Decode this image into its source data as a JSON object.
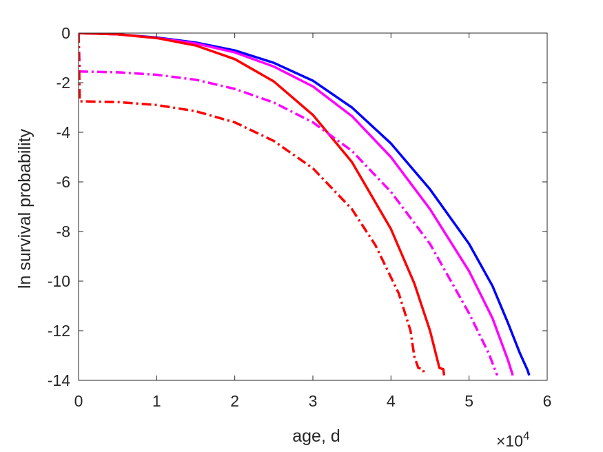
{
  "chart_data": {
    "type": "line",
    "title": "",
    "xlabel": "age, d",
    "ylabel": "ln survival probability",
    "x_multiplier_label": {
      "base": "×10",
      "exponent": "4"
    },
    "xlim": [
      0,
      60000
    ],
    "ylim": [
      -14,
      0
    ],
    "x_ticks": [
      0,
      10000,
      20000,
      30000,
      40000,
      50000,
      60000
    ],
    "x_tick_labels": [
      "0",
      "1",
      "2",
      "3",
      "4",
      "5",
      "6"
    ],
    "y_ticks": [
      0,
      -2,
      -4,
      -6,
      -8,
      -10,
      -12,
      -14
    ],
    "y_tick_labels": [
      "0",
      "-2",
      "-4",
      "-6",
      "-8",
      "-10",
      "-12",
      "-14"
    ],
    "grid": false,
    "series": [
      {
        "color": "#0000ff",
        "style": "solid",
        "points": [
          [
            0,
            0
          ],
          [
            5000,
            -0.05
          ],
          [
            10000,
            -0.18
          ],
          [
            15000,
            -0.38
          ],
          [
            20000,
            -0.7
          ],
          [
            25000,
            -1.2
          ],
          [
            30000,
            -1.92
          ],
          [
            35000,
            -3.0
          ],
          [
            40000,
            -4.45
          ],
          [
            45000,
            -6.3
          ],
          [
            50000,
            -8.5
          ],
          [
            53000,
            -10.2
          ],
          [
            55000,
            -11.7
          ],
          [
            56500,
            -12.9
          ],
          [
            57500,
            -13.6
          ],
          [
            57700,
            -13.8
          ]
        ]
      },
      {
        "color": "#ff00ff",
        "style": "solid",
        "points": [
          [
            0,
            0
          ],
          [
            5000,
            -0.05
          ],
          [
            10000,
            -0.2
          ],
          [
            15000,
            -0.42
          ],
          [
            20000,
            -0.78
          ],
          [
            25000,
            -1.35
          ],
          [
            30000,
            -2.15
          ],
          [
            35000,
            -3.35
          ],
          [
            40000,
            -5.0
          ],
          [
            45000,
            -7.1
          ],
          [
            50000,
            -9.6
          ],
          [
            53000,
            -11.5
          ],
          [
            55000,
            -13.2
          ],
          [
            55600,
            -13.8
          ]
        ]
      },
      {
        "color": "#ff0000",
        "style": "solid",
        "points": [
          [
            0,
            0
          ],
          [
            5000,
            -0.05
          ],
          [
            10000,
            -0.2
          ],
          [
            15000,
            -0.5
          ],
          [
            20000,
            -1.05
          ],
          [
            25000,
            -1.95
          ],
          [
            30000,
            -3.3
          ],
          [
            35000,
            -5.2
          ],
          [
            40000,
            -7.9
          ],
          [
            43000,
            -10.1
          ],
          [
            45000,
            -12.0
          ],
          [
            45800,
            -13.0
          ],
          [
            46200,
            -13.5
          ],
          [
            46700,
            -13.55
          ],
          [
            46800,
            -13.8
          ]
        ]
      },
      {
        "color": "#ff00ff",
        "style": "dashdot",
        "points": [
          [
            0,
            0
          ],
          [
            150,
            -1.55
          ],
          [
            5000,
            -1.58
          ],
          [
            10000,
            -1.68
          ],
          [
            15000,
            -1.88
          ],
          [
            20000,
            -2.25
          ],
          [
            25000,
            -2.8
          ],
          [
            30000,
            -3.6
          ],
          [
            35000,
            -4.75
          ],
          [
            40000,
            -6.4
          ],
          [
            45000,
            -8.5
          ],
          [
            50000,
            -11.3
          ],
          [
            52500,
            -12.9
          ],
          [
            53600,
            -13.8
          ]
        ]
      },
      {
        "color": "#ff0000",
        "style": "dashdot",
        "points": [
          [
            0,
            0
          ],
          [
            150,
            -2.75
          ],
          [
            5000,
            -2.78
          ],
          [
            10000,
            -2.9
          ],
          [
            15000,
            -3.15
          ],
          [
            20000,
            -3.6
          ],
          [
            25000,
            -4.35
          ],
          [
            30000,
            -5.45
          ],
          [
            35000,
            -7.1
          ],
          [
            38000,
            -8.55
          ],
          [
            41000,
            -10.5
          ],
          [
            42500,
            -12.0
          ],
          [
            43000,
            -13.05
          ],
          [
            43500,
            -13.5
          ],
          [
            44100,
            -13.55
          ],
          [
            44300,
            -13.8
          ]
        ]
      }
    ]
  }
}
